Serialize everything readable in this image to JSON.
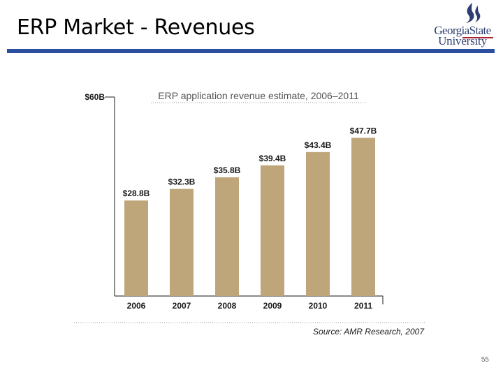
{
  "slide": {
    "title": "ERP Market - Revenues",
    "page_number": "55",
    "logo_line1": "GeorgiaState",
    "logo_line2": "University"
  },
  "colors": {
    "bar": "#bea67a",
    "rule": "#2b4f9e",
    "axis": "#444444",
    "text": "#1a1a1a"
  },
  "chart_data": {
    "type": "bar",
    "title": "ERP application revenue estimate, 2006–2011",
    "categories": [
      "2006",
      "2007",
      "2008",
      "2009",
      "2010",
      "2011"
    ],
    "values": [
      28.8,
      32.3,
      35.8,
      39.4,
      43.4,
      47.7
    ],
    "value_labels": [
      "$28.8B",
      "$32.3B",
      "$35.8B",
      "$39.4B",
      "$43.4B",
      "$47.7B"
    ],
    "y_tick_label": "$60B",
    "ylim": [
      0,
      60
    ],
    "source": "Source: AMR Research, 2007",
    "grid": false,
    "legend": "none"
  }
}
